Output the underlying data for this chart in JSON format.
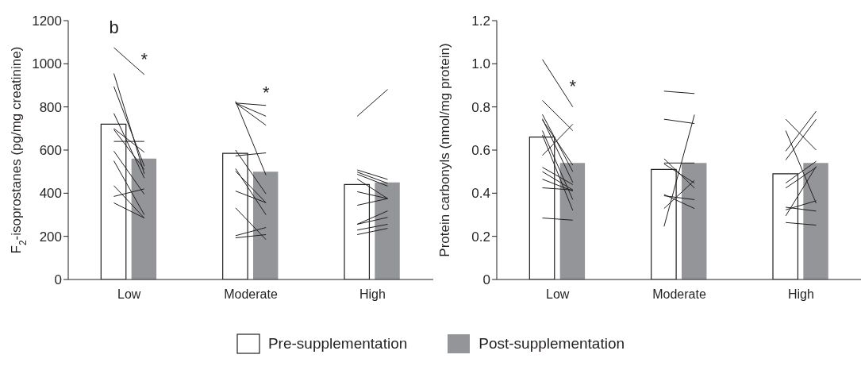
{
  "chart_data": [
    {
      "type": "bar",
      "ylabel": "F$_{2}$-isoprostanes (pg/mg creatinine)",
      "categories": [
        null,
        null,
        null,
        null,
        null,
        null,
        null,
        null,
        null,
        null,
        null,
        null
      ],
      "ylim": [
        0,
        1200
      ],
      "yticks": [
        0,
        200,
        400,
        600,
        800,
        1000,
        1200
      ],
      "legend": "bottom",
      "annotations": [
        "b",
        "*",
        "*",
        "Low",
        "Moderate",
        "High"
      ],
      "series": [
        {
          "name": "Pre-supplementation",
          "color": "#ffffff",
          "values": [
            null,
            720,
            null,
            null,
            null,
            585,
            null,
            null,
            null,
            440,
            null,
            null
          ]
        },
        {
          "name": "Post-supplementation",
          "color": "#939598",
          "values": [
            null,
            null,
            560,
            null,
            null,
            null,
            500,
            null,
            null,
            null,
            450,
            null
          ]
        },
        {
          "type": "line",
          "color": "#231f20",
          "values": [
            null,
            1075,
            950,
            null,
            null,
            null,
            null,
            null,
            null,
            null,
            null,
            null
          ]
        },
        {
          "type": "line",
          "color": "#231f20",
          "values": [
            null,
            955,
            490,
            null,
            null,
            null,
            null,
            null,
            null,
            null,
            null,
            null
          ]
        },
        {
          "type": "line",
          "color": "#231f20",
          "values": [
            null,
            895,
            525,
            null,
            null,
            null,
            null,
            null,
            null,
            null,
            null,
            null
          ]
        },
        {
          "type": "line",
          "color": "#231f20",
          "values": [
            null,
            770,
            470,
            null,
            null,
            null,
            null,
            null,
            null,
            null,
            null,
            null
          ]
        },
        {
          "type": "line",
          "color": "#231f20",
          "values": [
            null,
            700,
            590,
            null,
            null,
            null,
            null,
            null,
            null,
            null,
            null,
            null
          ]
        },
        {
          "type": "line",
          "color": "#231f20",
          "values": [
            null,
            695,
            510,
            null,
            null,
            null,
            null,
            null,
            null,
            null,
            null,
            null
          ]
        },
        {
          "type": "line",
          "color": "#231f20",
          "values": [
            null,
            640,
            640,
            null,
            null,
            null,
            null,
            null,
            null,
            null,
            null,
            null
          ]
        },
        {
          "type": "line",
          "color": "#231f20",
          "values": [
            null,
            595,
            395,
            null,
            null,
            null,
            null,
            null,
            null,
            null,
            null,
            null
          ]
        },
        {
          "type": "line",
          "color": "#231f20",
          "values": [
            null,
            550,
            300,
            null,
            null,
            null,
            null,
            null,
            null,
            null,
            null,
            null
          ]
        },
        {
          "type": "line",
          "color": "#231f20",
          "values": [
            null,
            435,
            285,
            null,
            null,
            null,
            null,
            null,
            null,
            null,
            null,
            null
          ]
        },
        {
          "type": "line",
          "color": "#231f20",
          "values": [
            null,
            385,
            420,
            null,
            null,
            null,
            null,
            null,
            null,
            null,
            null,
            null
          ]
        },
        {
          "type": "line",
          "color": "#231f20",
          "values": [
            null,
            355,
            285,
            null,
            null,
            null,
            null,
            null,
            null,
            null,
            null,
            null
          ]
        },
        {
          "type": "line",
          "color": "#231f20",
          "values": [
            null,
            null,
            null,
            null,
            null,
            826,
            484,
            null,
            null,
            null,
            null,
            null
          ]
        },
        {
          "type": "line",
          "color": "#231f20",
          "values": [
            null,
            null,
            null,
            null,
            null,
            818,
            807,
            null,
            null,
            null,
            null,
            null
          ]
        },
        {
          "type": "line",
          "color": "#231f20",
          "values": [
            null,
            null,
            null,
            null,
            null,
            818,
            757,
            null,
            null,
            null,
            null,
            null
          ]
        },
        {
          "type": "line",
          "color": "#231f20",
          "values": [
            null,
            null,
            null,
            null,
            null,
            818,
            715,
            null,
            null,
            null,
            null,
            null
          ]
        },
        {
          "type": "line",
          "color": "#231f20",
          "values": [
            null,
            null,
            null,
            null,
            null,
            600,
            397,
            null,
            null,
            null,
            null,
            null
          ]
        },
        {
          "type": "line",
          "color": "#231f20",
          "values": [
            null,
            null,
            null,
            null,
            null,
            573,
            587,
            null,
            null,
            null,
            null,
            null
          ]
        },
        {
          "type": "line",
          "color": "#231f20",
          "values": [
            null,
            null,
            null,
            null,
            null,
            514,
            300,
            null,
            null,
            null,
            null,
            null
          ]
        },
        {
          "type": "line",
          "color": "#231f20",
          "values": [
            null,
            null,
            null,
            null,
            null,
            502,
            356,
            null,
            null,
            null,
            null,
            null
          ]
        },
        {
          "type": "line",
          "color": "#231f20",
          "values": [
            null,
            null,
            null,
            null,
            null,
            410,
            356,
            null,
            null,
            null,
            null,
            null
          ]
        },
        {
          "type": "line",
          "color": "#231f20",
          "values": [
            null,
            null,
            null,
            null,
            null,
            332,
            185,
            null,
            null,
            null,
            null,
            null
          ]
        },
        {
          "type": "line",
          "color": "#231f20",
          "values": [
            null,
            null,
            null,
            null,
            null,
            203,
            241,
            null,
            null,
            null,
            null,
            null
          ]
        },
        {
          "type": "line",
          "color": "#231f20",
          "values": [
            null,
            null,
            null,
            null,
            null,
            193,
            208,
            null,
            null,
            null,
            null,
            null
          ]
        },
        {
          "type": "line",
          "color": "#231f20",
          "values": [
            null,
            null,
            null,
            null,
            null,
            null,
            null,
            null,
            null,
            757,
            881,
            null
          ]
        },
        {
          "type": "line",
          "color": "#231f20",
          "values": [
            null,
            null,
            null,
            null,
            null,
            null,
            null,
            null,
            null,
            508,
            464,
            null
          ]
        },
        {
          "type": "line",
          "color": "#231f20",
          "values": [
            null,
            null,
            null,
            null,
            null,
            null,
            null,
            null,
            null,
            498,
            446,
            null
          ]
        },
        {
          "type": "line",
          "color": "#231f20",
          "values": [
            null,
            null,
            null,
            null,
            null,
            null,
            null,
            null,
            null,
            488,
            433,
            null
          ]
        },
        {
          "type": "line",
          "color": "#231f20",
          "values": [
            null,
            null,
            null,
            null,
            null,
            null,
            null,
            null,
            null,
            466,
            375,
            null
          ]
        },
        {
          "type": "line",
          "color": "#231f20",
          "values": [
            null,
            null,
            null,
            null,
            null,
            null,
            null,
            null,
            null,
            407,
            375,
            null
          ]
        },
        {
          "type": "line",
          "color": "#231f20",
          "values": [
            null,
            null,
            null,
            null,
            null,
            null,
            null,
            null,
            null,
            344,
            375,
            null
          ]
        },
        {
          "type": "line",
          "color": "#231f20",
          "values": [
            null,
            null,
            null,
            null,
            null,
            null,
            null,
            null,
            null,
            256,
            318,
            null
          ]
        },
        {
          "type": "line",
          "color": "#231f20",
          "values": [
            null,
            null,
            null,
            null,
            null,
            null,
            null,
            null,
            null,
            256,
            288,
            null
          ]
        },
        {
          "type": "line",
          "color": "#231f20",
          "values": [
            null,
            null,
            null,
            null,
            null,
            null,
            null,
            null,
            null,
            229,
            256,
            null
          ]
        },
        {
          "type": "line",
          "color": "#231f20",
          "values": [
            null,
            null,
            null,
            null,
            null,
            null,
            null,
            null,
            null,
            208,
            237,
            null
          ]
        }
      ]
    },
    {
      "type": "bar",
      "ylabel": "Protein carbonyls (nmol/mg protein)",
      "categories": [
        null,
        null,
        null,
        null,
        null,
        null,
        null,
        null,
        null,
        null,
        null,
        null
      ],
      "ylim": [
        0,
        1.2
      ],
      "yticks": [
        0,
        0.2,
        0.4,
        0.6,
        0.8,
        {
          "value": 1,
          "label": "1.0"
        },
        1.2
      ],
      "annotations": [
        "*",
        "Low",
        "Moderate",
        "High"
      ],
      "series": [
        {
          "color": "#ffffff",
          "values": [
            null,
            0.66,
            null,
            null,
            null,
            0.51,
            null,
            null,
            null,
            0.49,
            null,
            null
          ]
        },
        {
          "color": "#939598",
          "values": [
            null,
            null,
            0.54,
            null,
            null,
            null,
            0.54,
            null,
            null,
            null,
            0.54,
            null
          ]
        },
        {
          "type": "line",
          "color": "#231f20",
          "values": [
            null,
            1.02,
            0.8,
            null,
            null,
            null,
            null,
            null,
            null,
            null,
            null,
            null
          ]
        },
        {
          "type": "line",
          "color": "#231f20",
          "values": [
            null,
            0.83,
            0.69,
            null,
            null,
            null,
            null,
            null,
            null,
            null,
            null,
            null
          ]
        },
        {
          "type": "line",
          "color": "#231f20",
          "values": [
            null,
            0.765,
            0.5,
            null,
            null,
            null,
            null,
            null,
            null,
            null,
            null,
            null
          ]
        },
        {
          "type": "line",
          "color": "#231f20",
          "values": [
            null,
            0.745,
            0.45,
            null,
            null,
            null,
            null,
            null,
            null,
            null,
            null,
            null
          ]
        },
        {
          "type": "line",
          "color": "#231f20",
          "values": [
            null,
            0.74,
            0.53,
            null,
            null,
            null,
            null,
            null,
            null,
            null,
            null,
            null
          ]
        },
        {
          "type": "line",
          "color": "#231f20",
          "values": [
            null,
            0.69,
            0.37,
            null,
            null,
            null,
            null,
            null,
            null,
            null,
            null,
            null
          ]
        },
        {
          "type": "line",
          "color": "#231f20",
          "values": [
            null,
            0.67,
            0.32,
            null,
            null,
            null,
            null,
            null,
            null,
            null,
            null,
            null
          ]
        },
        {
          "type": "line",
          "color": "#231f20",
          "values": [
            null,
            0.575,
            0.72,
            null,
            null,
            null,
            null,
            null,
            null,
            null,
            null,
            null
          ]
        },
        {
          "type": "line",
          "color": "#231f20",
          "values": [
            null,
            0.52,
            0.44,
            null,
            null,
            null,
            null,
            null,
            null,
            null,
            null,
            null
          ]
        },
        {
          "type": "line",
          "color": "#231f20",
          "values": [
            null,
            0.5,
            0.415,
            null,
            null,
            null,
            null,
            null,
            null,
            null,
            null,
            null
          ]
        },
        {
          "type": "line",
          "color": "#231f20",
          "values": [
            null,
            0.465,
            0.41,
            null,
            null,
            null,
            null,
            null,
            null,
            null,
            null,
            null
          ]
        },
        {
          "type": "line",
          "color": "#231f20",
          "values": [
            null,
            0.425,
            0.415,
            null,
            null,
            null,
            null,
            null,
            null,
            null,
            null,
            null
          ]
        },
        {
          "type": "line",
          "color": "#231f20",
          "values": [
            null,
            0.285,
            0.275,
            null,
            null,
            null,
            null,
            null,
            null,
            null,
            null,
            null
          ]
        },
        {
          "type": "line",
          "color": "#231f20",
          "values": [
            null,
            null,
            null,
            null,
            null,
            0.873,
            0.862,
            null,
            null,
            null,
            null,
            null
          ]
        },
        {
          "type": "line",
          "color": "#231f20",
          "values": [
            null,
            null,
            null,
            null,
            null,
            0.743,
            0.723,
            null,
            null,
            null,
            null,
            null
          ]
        },
        {
          "type": "line",
          "color": "#231f20",
          "values": [
            null,
            null,
            null,
            null,
            null,
            0.56,
            0.424,
            null,
            null,
            null,
            null,
            null
          ]
        },
        {
          "type": "line",
          "color": "#231f20",
          "values": [
            null,
            null,
            null,
            null,
            null,
            0.54,
            0.54,
            null,
            null,
            null,
            null,
            null
          ]
        },
        {
          "type": "line",
          "color": "#231f20",
          "values": [
            null,
            null,
            null,
            null,
            null,
            0.536,
            0.447,
            null,
            null,
            null,
            null,
            null
          ]
        },
        {
          "type": "line",
          "color": "#231f20",
          "values": [
            null,
            null,
            null,
            null,
            null,
            0.394,
            0.329,
            null,
            null,
            null,
            null,
            null
          ]
        },
        {
          "type": "line",
          "color": "#231f20",
          "values": [
            null,
            null,
            null,
            null,
            null,
            0.388,
            0.37,
            null,
            null,
            null,
            null,
            null
          ]
        },
        {
          "type": "line",
          "color": "#231f20",
          "values": [
            null,
            null,
            null,
            null,
            null,
            0.329,
            0.46,
            null,
            null,
            null,
            null,
            null
          ]
        },
        {
          "type": "line",
          "color": "#231f20",
          "values": [
            null,
            null,
            null,
            null,
            null,
            0.246,
            0.764,
            null,
            null,
            null,
            null,
            null
          ]
        },
        {
          "type": "line",
          "color": "#231f20",
          "values": [
            null,
            null,
            null,
            null,
            null,
            null,
            null,
            null,
            null,
            0.743,
            0.6,
            null
          ]
        },
        {
          "type": "line",
          "color": "#231f20",
          "values": [
            null,
            null,
            null,
            null,
            null,
            null,
            null,
            null,
            null,
            0.69,
            0.353,
            null
          ]
        },
        {
          "type": "line",
          "color": "#231f20",
          "values": [
            null,
            null,
            null,
            null,
            null,
            null,
            null,
            null,
            null,
            0.595,
            0.78,
            null
          ]
        },
        {
          "type": "line",
          "color": "#231f20",
          "values": [
            null,
            null,
            null,
            null,
            null,
            null,
            null,
            null,
            null,
            0.554,
            0.743,
            null
          ]
        },
        {
          "type": "line",
          "color": "#231f20",
          "values": [
            null,
            null,
            null,
            null,
            null,
            null,
            null,
            null,
            null,
            0.447,
            0.548,
            null
          ]
        },
        {
          "type": "line",
          "color": "#231f20",
          "values": [
            null,
            null,
            null,
            null,
            null,
            null,
            null,
            null,
            null,
            0.424,
            0.52,
            null
          ]
        },
        {
          "type": "line",
          "color": "#231f20",
          "values": [
            null,
            null,
            null,
            null,
            null,
            null,
            null,
            null,
            null,
            0.335,
            0.317,
            null
          ]
        },
        {
          "type": "line",
          "color": "#231f20",
          "values": [
            null,
            null,
            null,
            null,
            null,
            null,
            null,
            null,
            null,
            0.323,
            0.365,
            null
          ]
        },
        {
          "type": "line",
          "color": "#231f20",
          "values": [
            null,
            null,
            null,
            null,
            null,
            null,
            null,
            null,
            null,
            0.295,
            0.524,
            null
          ]
        },
        {
          "type": "line",
          "color": "#231f20",
          "values": [
            null,
            null,
            null,
            null,
            null,
            null,
            null,
            null,
            null,
            0.264,
            0.252,
            null
          ]
        }
      ]
    }
  ]
}
